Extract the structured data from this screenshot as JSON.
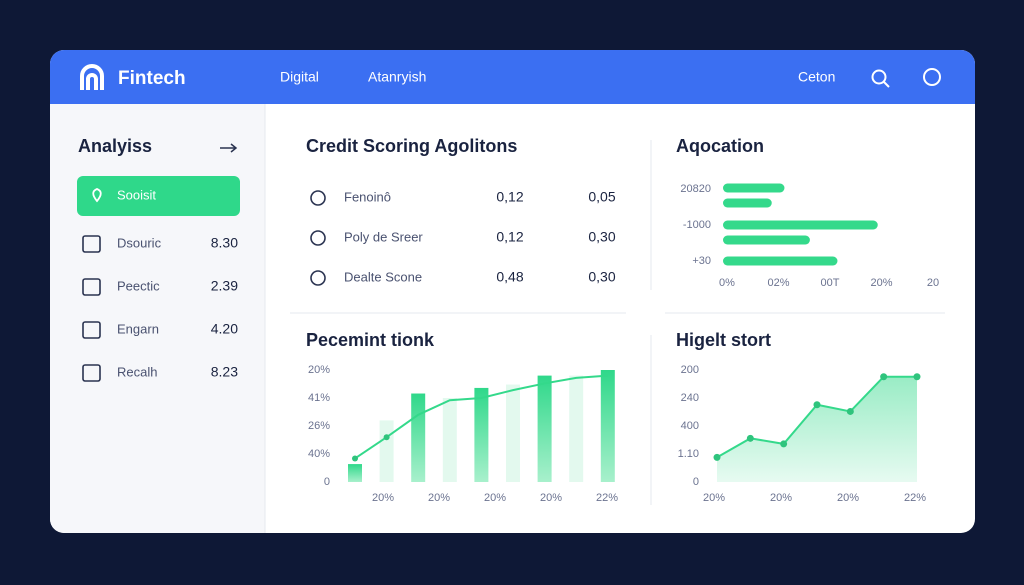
{
  "header": {
    "brand": "Fintech",
    "nav": [
      "Digital",
      "Atanryish"
    ],
    "right": "Ceton"
  },
  "sidebar": {
    "title": "Analyiss",
    "active": "Sooisit",
    "items": [
      {
        "label": "Dsouric",
        "value": "8.30"
      },
      {
        "label": "Pеectic",
        "value": "2.39"
      },
      {
        "label": "Engarn",
        "value": "4.20"
      },
      {
        "label": "Recalh",
        "value": "8.23"
      }
    ]
  },
  "credit": {
    "title": "Credit Scoring Agolitons",
    "rows": [
      [
        "Fenoinô",
        "0,12",
        "0,05"
      ],
      [
        "Poly de Sreer",
        "0,12",
        "0,30"
      ],
      [
        "Dealte Scone",
        "0,48",
        "0,30"
      ]
    ]
  },
  "allocation": {
    "title": "Aqocation",
    "ylabels": [
      "20820",
      "-1000",
      "+30"
    ],
    "xlabels": [
      "0%",
      "02%",
      "00T",
      "20%",
      "20"
    ],
    "values": [
      29,
      23,
      73,
      41,
      54
    ],
    "color": "#34d98b"
  },
  "performance": {
    "title": "Pecemint tionk",
    "ylabels": [
      "20%",
      "41%",
      "26%",
      "40%",
      "0"
    ],
    "xlabels": [
      "20%",
      "20%",
      "20%",
      "20%",
      "22%"
    ],
    "bars": [
      16,
      55,
      79,
      75,
      84,
      87,
      95,
      95,
      100
    ],
    "line": [
      21,
      40,
      60,
      73,
      75,
      82,
      88,
      93,
      95
    ],
    "ylim": [
      0,
      100
    ],
    "color": "#34d98b"
  },
  "highlight": {
    "title": "Higelt stort",
    "ylabels": [
      "200",
      "240",
      "400",
      "1.10",
      "0"
    ],
    "xlabels": [
      "20%",
      "20%",
      "20%",
      "22%"
    ],
    "values": [
      22,
      39,
      34,
      69,
      63,
      94,
      94
    ],
    "ylim": [
      0,
      100
    ],
    "color": "#34d98b"
  }
}
